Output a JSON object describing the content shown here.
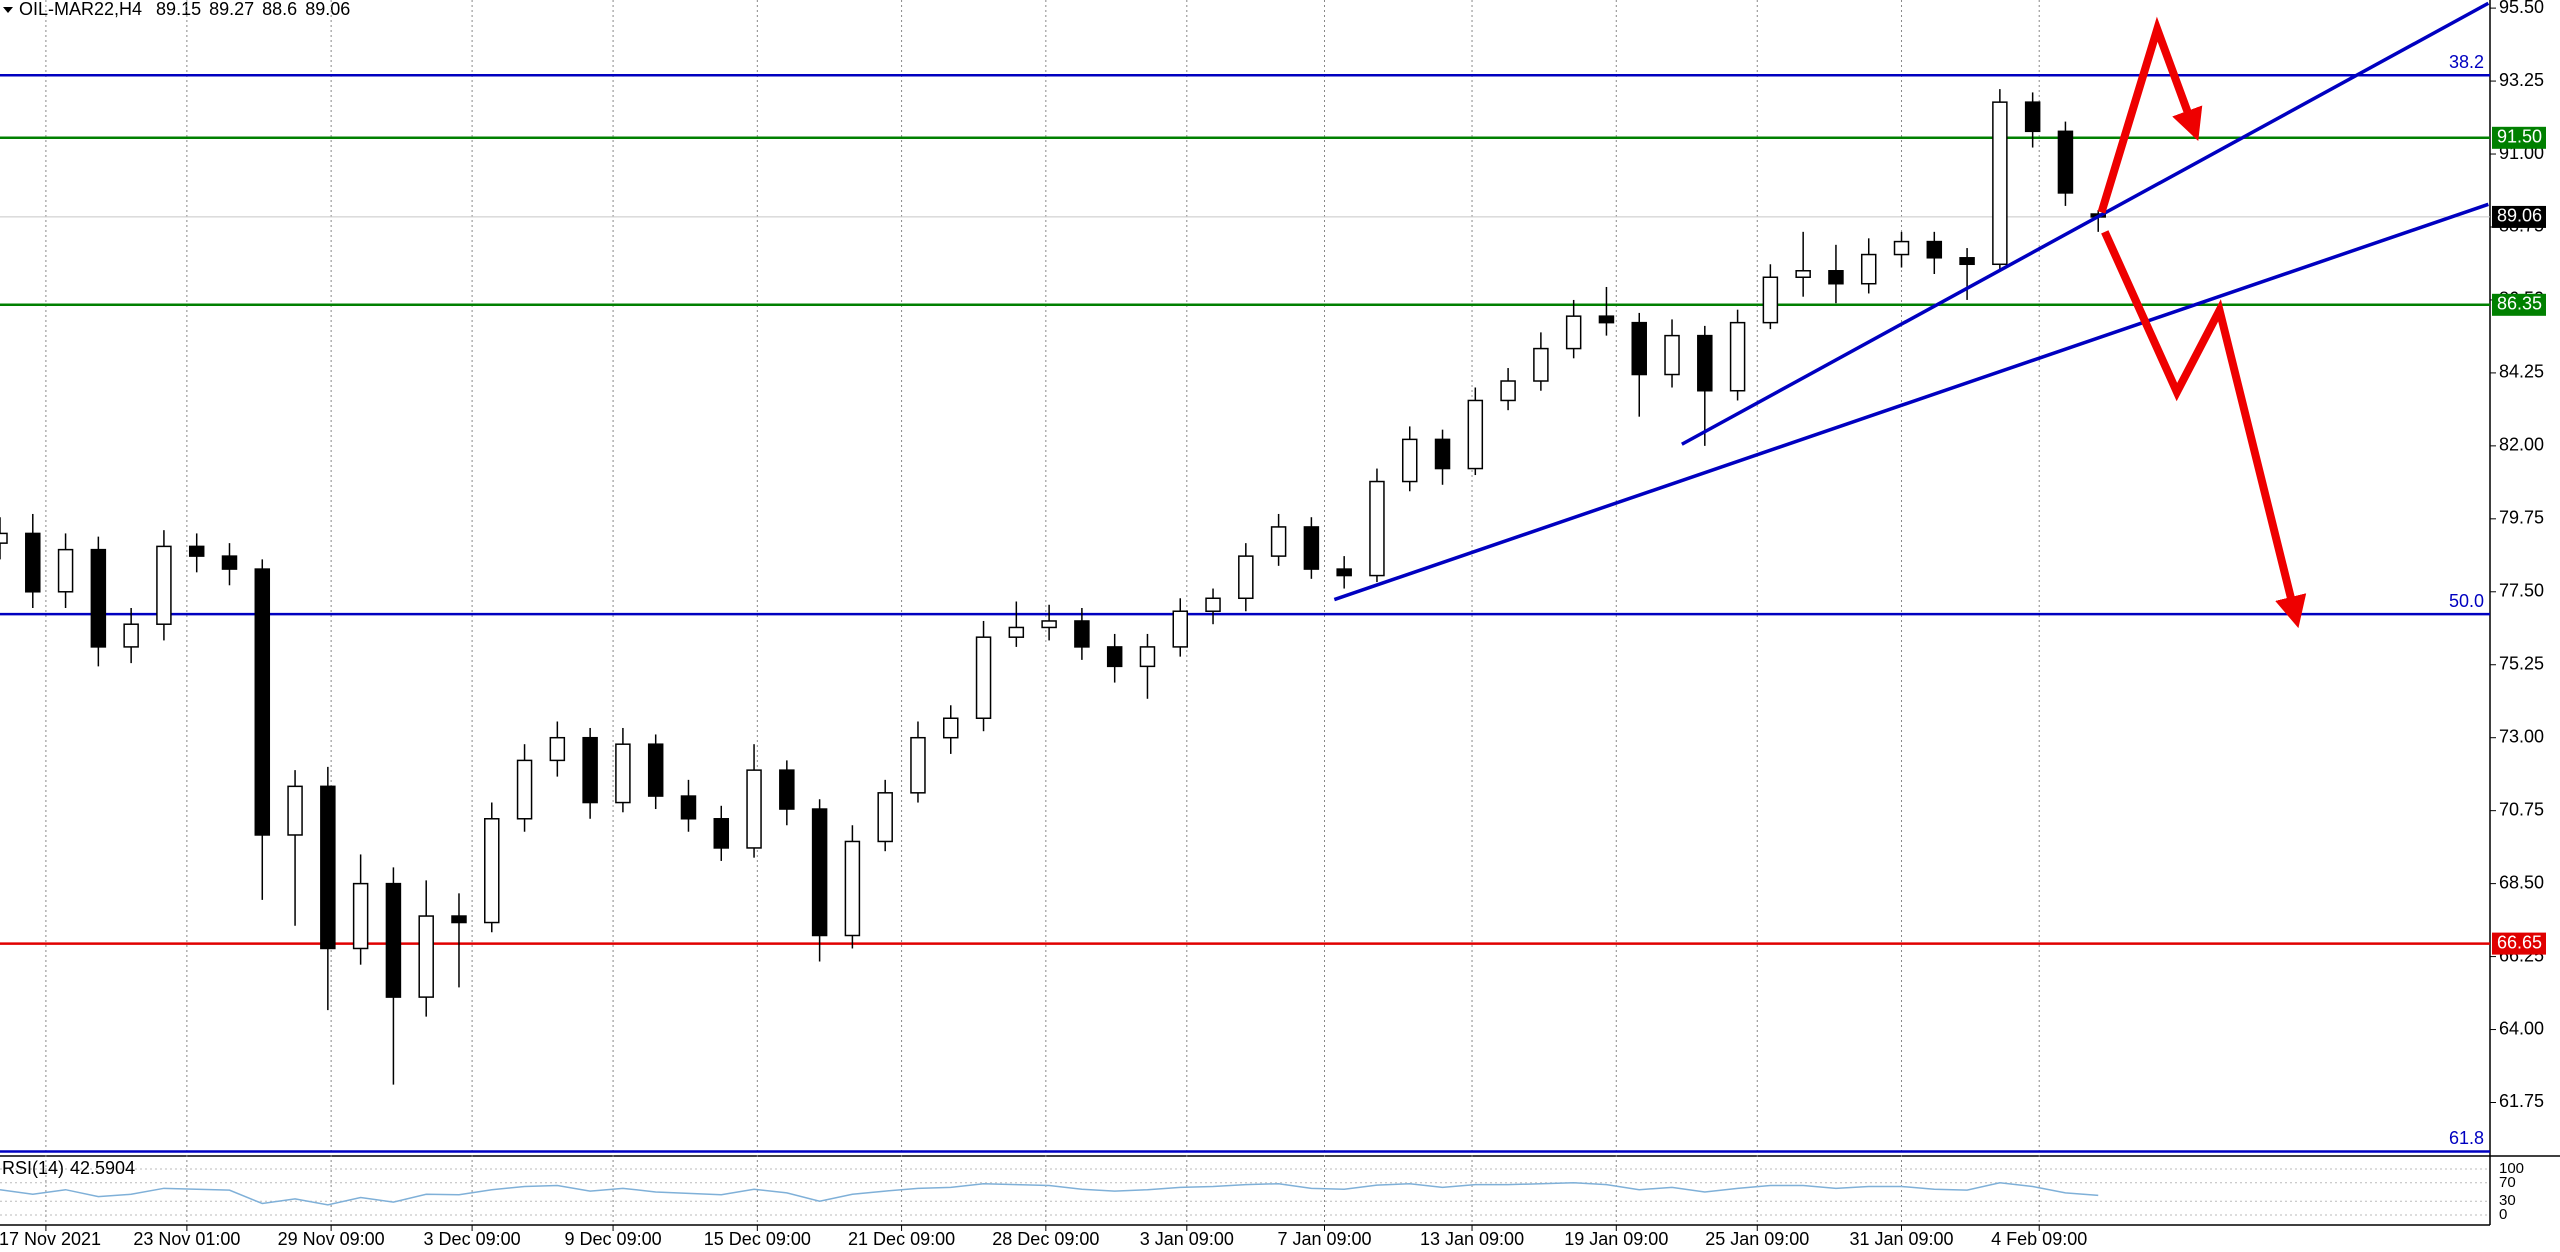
{
  "chart_data": {
    "type": "candlestick",
    "symbol": "OIL-MAR22,H4",
    "open": [
      79.0,
      79.3,
      77.5,
      78.8,
      75.8,
      76.5,
      78.9,
      78.6,
      78.2,
      70.0,
      71.5,
      66.5,
      68.5,
      65.0,
      67.5,
      67.3,
      70.5,
      72.3,
      73.0,
      71.0,
      72.8,
      71.2,
      70.5,
      69.6,
      72.0,
      70.8,
      66.9,
      69.8,
      71.3,
      73.0,
      73.6,
      76.1,
      76.4,
      76.6,
      75.8,
      75.2,
      75.8,
      76.9,
      77.3,
      78.6,
      79.5,
      78.2,
      78.0,
      80.9,
      82.2,
      81.3,
      83.4,
      84.0,
      85.0,
      86.0,
      85.8,
      84.2,
      85.4,
      83.7,
      85.8,
      87.2,
      87.4,
      87.0,
      87.9,
      88.3,
      87.8,
      87.6,
      92.6,
      91.7,
      89.15
    ],
    "high": [
      79.8,
      79.9,
      79.3,
      79.2,
      77.0,
      79.4,
      79.3,
      79.0,
      78.5,
      72.0,
      72.1,
      69.4,
      69.0,
      68.6,
      68.2,
      71.0,
      72.8,
      73.5,
      73.3,
      73.3,
      73.1,
      71.7,
      70.9,
      72.8,
      72.3,
      71.1,
      70.3,
      71.7,
      73.5,
      74.0,
      76.6,
      77.2,
      77.1,
      77.0,
      76.2,
      76.2,
      77.3,
      77.6,
      79.0,
      79.9,
      79.8,
      78.6,
      81.3,
      82.6,
      82.5,
      83.8,
      84.4,
      85.5,
      86.5,
      86.9,
      86.1,
      85.9,
      85.7,
      86.2,
      87.6,
      88.6,
      88.2,
      88.4,
      88.6,
      88.6,
      88.1,
      93.0,
      92.9,
      92.0,
      89.27
    ],
    "low": [
      78.5,
      77.0,
      77.0,
      75.2,
      75.3,
      76.0,
      78.1,
      77.7,
      68.0,
      67.2,
      64.6,
      66.0,
      62.3,
      64.4,
      65.3,
      67.0,
      70.1,
      71.8,
      70.5,
      70.7,
      70.8,
      70.1,
      69.2,
      69.3,
      70.3,
      66.1,
      66.5,
      69.5,
      71.0,
      72.5,
      73.2,
      75.8,
      76.0,
      75.4,
      74.7,
      74.2,
      75.5,
      76.5,
      76.9,
      78.3,
      77.9,
      77.6,
      77.8,
      80.6,
      80.8,
      81.1,
      83.1,
      83.7,
      84.7,
      85.4,
      82.9,
      83.8,
      82.0,
      83.4,
      85.6,
      86.6,
      86.4,
      86.7,
      87.5,
      87.3,
      86.5,
      87.4,
      91.2,
      89.4,
      88.6
    ],
    "close": [
      79.3,
      77.5,
      78.8,
      75.8,
      76.5,
      78.9,
      78.6,
      78.2,
      70.0,
      71.5,
      66.5,
      68.5,
      65.0,
      67.5,
      67.3,
      70.5,
      72.3,
      73.0,
      71.0,
      72.8,
      71.2,
      70.5,
      69.6,
      72.0,
      70.8,
      66.9,
      69.8,
      71.3,
      73.0,
      73.6,
      76.1,
      76.4,
      76.6,
      75.8,
      75.2,
      75.8,
      76.9,
      77.3,
      78.6,
      79.5,
      78.2,
      78.0,
      80.9,
      82.2,
      81.3,
      83.4,
      84.0,
      85.0,
      86.0,
      85.8,
      84.2,
      85.4,
      83.7,
      85.8,
      87.2,
      87.4,
      87.0,
      87.9,
      88.3,
      87.8,
      87.6,
      92.6,
      91.7,
      89.8,
      89.06
    ],
    "xlim": [
      0,
      75.95
    ],
    "ylim": [
      60.1,
      95.75
    ],
    "xticks": [
      {
        "value": 1.4,
        "label": "17 Nov 2021"
      },
      {
        "value": 5.7,
        "label": "23 Nov 01:00"
      },
      {
        "value": 10.1,
        "label": "29 Nov 09:00"
      },
      {
        "value": 14.4,
        "label": "3 Dec 09:00"
      },
      {
        "value": 18.7,
        "label": "9 Dec 09:00"
      },
      {
        "value": 23.1,
        "label": "15 Dec 09:00"
      },
      {
        "value": 27.5,
        "label": "21 Dec 09:00"
      },
      {
        "value": 31.9,
        "label": "28 Dec 09:00"
      },
      {
        "value": 36.2,
        "label": "3 Jan 09:00"
      },
      {
        "value": 40.4,
        "label": "7 Jan 09:00"
      },
      {
        "value": 44.9,
        "label": "13 Jan 09:00"
      },
      {
        "value": 49.3,
        "label": "19 Jan 09:00"
      },
      {
        "value": 53.6,
        "label": "25 Jan 09:00"
      },
      {
        "value": 58.0,
        "label": "31 Jan 09:00"
      },
      {
        "value": 62.2,
        "label": "4 Feb 09:00"
      }
    ],
    "yticks": [
      {
        "value": 95.5,
        "label": "95.50"
      },
      {
        "value": 93.25,
        "label": "93.25"
      },
      {
        "value": 91.0,
        "label": "91.00"
      },
      {
        "value": 88.75,
        "label": "88.75"
      },
      {
        "value": 86.5,
        "label": "86.50"
      },
      {
        "value": 84.25,
        "label": "84.25"
      },
      {
        "value": 82.0,
        "label": "82.00"
      },
      {
        "value": 79.75,
        "label": "79.75"
      },
      {
        "value": 77.5,
        "label": "77.50"
      },
      {
        "value": 75.25,
        "label": "75.25"
      },
      {
        "value": 73.0,
        "label": "73.00"
      },
      {
        "value": 70.75,
        "label": "70.75"
      },
      {
        "value": 68.5,
        "label": "68.50"
      },
      {
        "value": 66.25,
        "label": "66.25"
      },
      {
        "value": 64.0,
        "label": "64.00"
      },
      {
        "value": 61.75,
        "label": "61.75"
      }
    ],
    "fib_levels": [
      {
        "value": 93.43,
        "label": "38.2",
        "color": "#0000c0"
      },
      {
        "value": 76.81,
        "label": "50.0",
        "color": "#0000c0"
      },
      {
        "value": 60.24,
        "label": "61.8",
        "color": "#0000c0"
      }
    ],
    "price_lines": [
      {
        "value": 91.5,
        "label": "91.50",
        "color": "#008000"
      },
      {
        "value": 86.35,
        "color": "#008000"
      },
      {
        "value": 66.65,
        "color": "#e00000"
      }
    ],
    "trendlines": [
      {
        "x": [
          40.7,
          75.9
        ],
        "y": [
          77.26,
          89.45
        ],
        "color": "#0000c0"
      },
      {
        "x": [
          51.3,
          75.9
        ],
        "y": [
          82.05,
          95.65
        ],
        "color": "#0000c0"
      }
    ],
    "arrows": [
      {
        "x": [
          64.1,
          65.8,
          66.9
        ],
        "y": [
          89.2,
          94.85,
          91.82
        ],
        "color": "#ee0000"
      },
      {
        "x": [
          64.2,
          66.4,
          67.7,
          70.0
        ],
        "y": [
          88.6,
          83.66,
          86.18,
          76.81
        ],
        "color": "#ee0000"
      }
    ],
    "rsi": {
      "name": "RSI(14)",
      "color": "#7fb0d8",
      "ylim": [
        0,
        100
      ],
      "yticks": [
        100,
        70,
        30,
        0
      ],
      "values": [
        55,
        45,
        55,
        40,
        45,
        58,
        56,
        54,
        25,
        35,
        22,
        38,
        28,
        45,
        44,
        55,
        62,
        64,
        52,
        58,
        50,
        47,
        44,
        56,
        48,
        30,
        45,
        52,
        58,
        60,
        68,
        66,
        64,
        56,
        52,
        55,
        60,
        62,
        66,
        68,
        58,
        56,
        65,
        68,
        60,
        66,
        66,
        68,
        70,
        66,
        55,
        60,
        50,
        58,
        64,
        64,
        58,
        62,
        62,
        56,
        54,
        70,
        62,
        48,
        42.5904
      ]
    }
  }
}
